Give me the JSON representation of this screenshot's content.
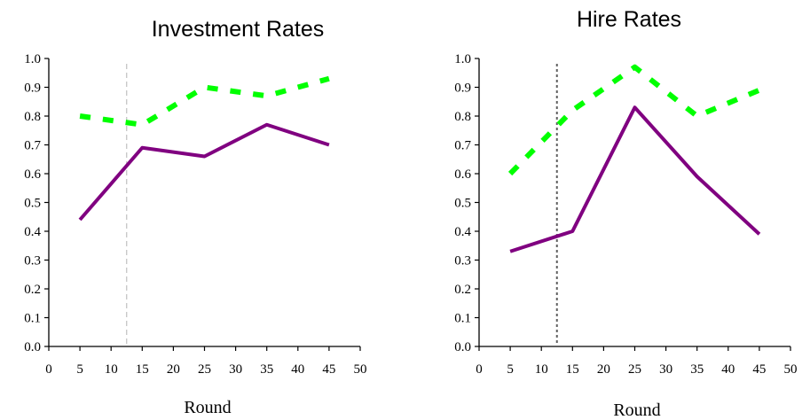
{
  "chart_data": [
    {
      "type": "line",
      "title": "Investment Rates",
      "xlabel": "Round",
      "ylabel": "",
      "xlim": [
        0,
        50
      ],
      "ylim": [
        0,
        1
      ],
      "xticks": [
        "0",
        "5",
        "10",
        "15",
        "20",
        "25",
        "30",
        "35",
        "40",
        "45",
        "50"
      ],
      "yticks": [
        "0.0",
        "0.1",
        "0.2",
        "0.3",
        "0.4",
        "0.5",
        "0.6",
        "0.7",
        "0.8",
        "0.9",
        "1.0"
      ],
      "x": [
        5,
        15,
        25,
        35,
        45
      ],
      "series": [
        {
          "values": [
            0.8,
            0.77,
            0.9,
            0.87,
            0.93
          ],
          "color": "#00ff00",
          "style": "dashed"
        },
        {
          "values": [
            0.44,
            0.69,
            0.66,
            0.77,
            0.7
          ],
          "color": "#800080",
          "style": "solid"
        }
      ],
      "vline": {
        "x": 12.5,
        "color": "#c0c0c0",
        "style": "dashed"
      },
      "grid": false,
      "legend": false
    },
    {
      "type": "line",
      "title": "Hire Rates",
      "xlabel": "Round",
      "ylabel": "",
      "xlim": [
        0,
        50
      ],
      "ylim": [
        0,
        1
      ],
      "xticks": [
        "0",
        "5",
        "10",
        "15",
        "20",
        "25",
        "30",
        "35",
        "40",
        "45",
        "50"
      ],
      "yticks": [
        "0.0",
        "0.1",
        "0.2",
        "0.3",
        "0.4",
        "0.5",
        "0.6",
        "0.7",
        "0.8",
        "0.9",
        "1.0"
      ],
      "x": [
        5,
        15,
        25,
        35,
        45
      ],
      "series": [
        {
          "values": [
            0.6,
            0.82,
            0.97,
            0.8,
            0.89
          ],
          "color": "#00ff00",
          "style": "dashed"
        },
        {
          "values": [
            0.33,
            0.4,
            0.83,
            0.59,
            0.39
          ],
          "color": "#800080",
          "style": "solid"
        }
      ],
      "vline": {
        "x": 12.5,
        "color": "#606060",
        "style": "dotted"
      },
      "grid": false,
      "legend": false
    }
  ]
}
